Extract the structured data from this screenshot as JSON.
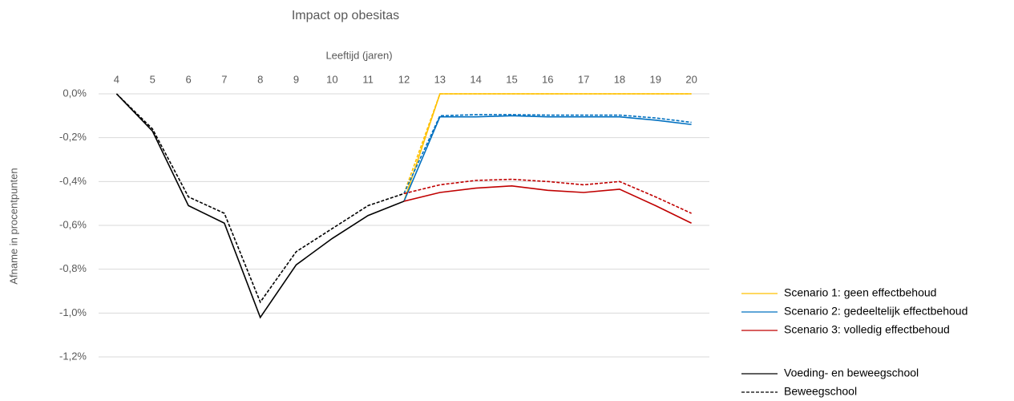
{
  "chart_data": {
    "type": "line",
    "title": "Impact op obesitas",
    "x_label": "Leeftijd (jaren)",
    "y_label": "Afname in procentpunten",
    "x": [
      4,
      5,
      6,
      7,
      8,
      9,
      10,
      11,
      12,
      13,
      14,
      15,
      16,
      17,
      18,
      19,
      20
    ],
    "xlim": [
      3.5,
      20.5
    ],
    "xticks": [
      4,
      5,
      6,
      7,
      8,
      9,
      10,
      11,
      12,
      13,
      14,
      15,
      16,
      17,
      18,
      19,
      20
    ],
    "ylim": [
      -1.3,
      0.05
    ],
    "yticks": [
      {
        "value": 0,
        "label": "0,0%"
      },
      {
        "value": -0.2,
        "label": "-0,2%"
      },
      {
        "value": -0.4,
        "label": "-0,4%"
      },
      {
        "value": -0.6,
        "label": "-0,6%"
      },
      {
        "value": -0.8,
        "label": "-0,8%"
      },
      {
        "value": -1.0,
        "label": "-1,0%"
      },
      {
        "value": -1.2,
        "label": "-1,2%"
      }
    ],
    "grid": true,
    "legend": "lower right",
    "series": [
      {
        "name": "Scenario 1: geen effectbehoud",
        "color": "#ffc000",
        "values": [
          null,
          null,
          null,
          null,
          null,
          null,
          null,
          null,
          -0.49,
          0,
          0,
          0,
          0,
          0,
          0,
          0,
          0
        ],
        "values_dashed": [
          null,
          null,
          null,
          null,
          null,
          null,
          null,
          null,
          -0.455,
          0,
          0,
          0,
          0,
          0,
          0,
          0,
          0
        ]
      },
      {
        "name": "Scenario 2: gedeeltelijk effectbehoud",
        "color": "#0070c0",
        "values": [
          null,
          null,
          null,
          null,
          null,
          null,
          null,
          null,
          -0.49,
          -0.105,
          -0.105,
          -0.1,
          -0.105,
          -0.105,
          -0.105,
          -0.12,
          -0.14
        ],
        "values_dashed": [
          null,
          null,
          null,
          null,
          null,
          null,
          null,
          null,
          -0.455,
          -0.1,
          -0.095,
          -0.095,
          -0.097,
          -0.097,
          -0.097,
          -0.11,
          -0.13
        ]
      },
      {
        "name": "Scenario 3: volledig effectbehoud",
        "color": "#c00000",
        "values": [
          null,
          null,
          null,
          null,
          null,
          null,
          null,
          null,
          -0.49,
          -0.45,
          -0.43,
          -0.42,
          -0.44,
          -0.45,
          -0.435,
          -0.51,
          -0.59
        ],
        "values_dashed": [
          null,
          null,
          null,
          null,
          null,
          null,
          null,
          null,
          -0.455,
          -0.415,
          -0.395,
          -0.39,
          -0.4,
          -0.415,
          -0.4,
          -0.47,
          -0.545
        ]
      },
      {
        "name": "Voeding- en beweegschool",
        "color": "#000000",
        "dashed": false,
        "values": [
          0,
          -0.17,
          -0.51,
          -0.59,
          -1.02,
          -0.78,
          -0.66,
          -0.555,
          -0.49,
          null,
          null,
          null,
          null,
          null,
          null,
          null,
          null
        ]
      },
      {
        "name": "Beweegschool",
        "color": "#000000",
        "dashed": true,
        "values": [
          0,
          -0.16,
          -0.47,
          -0.545,
          -0.95,
          -0.72,
          -0.615,
          -0.51,
          -0.455,
          null,
          null,
          null,
          null,
          null,
          null,
          null,
          null
        ]
      }
    ]
  }
}
